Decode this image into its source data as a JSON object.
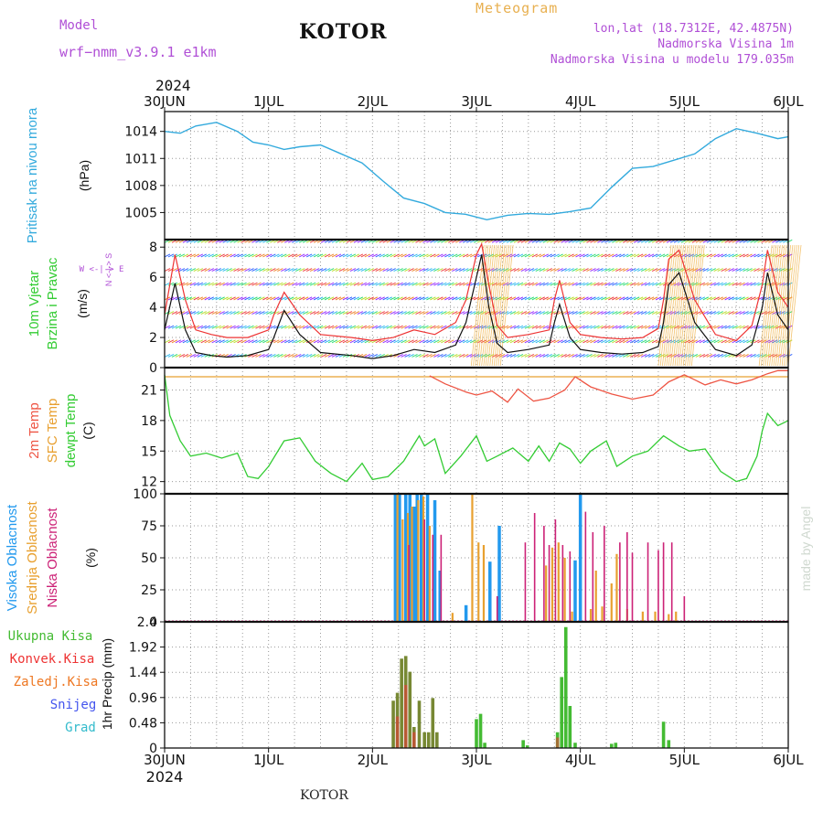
{
  "header": {
    "meteogram_label": "Meteogram",
    "title": "KOTOR",
    "model_label": "Model",
    "model_name": "wrf−nmm_v3.9.1  e1km",
    "coords": "lon,lat (18.7312E, 42.4875N)",
    "elevation": "Nadmorska Visina 1m",
    "model_elevation": "Nadmorska Visina u modelu 179.035m",
    "year_top": "2024",
    "footer_location": "KOTOR",
    "credit": "made by Angel"
  },
  "colors": {
    "pressure": "#33aadd",
    "wind_speed": "#111111",
    "wind_gust": "#ee3333",
    "temp_2m": "#ee5544",
    "temp_sfc": "#e8a030",
    "dewpoint": "#33cc33",
    "cloud_high": "#2299ee",
    "cloud_mid": "#e8a030",
    "cloud_low": "#cc2277",
    "precip_total": "#44bb33",
    "precip_conv": "#ee3333",
    "precip_frozen": "#ee7722",
    "snow": "#4455ee",
    "hail": "#33bbcc",
    "model_purple": "#b04fd6"
  },
  "chart_data": [
    {
      "type": "line",
      "panel": "pressure",
      "ylabel_colored": "Pritisak na nivou mora",
      "unit": "(hPa)",
      "x_tick_labels": [
        "30JUN",
        "1JUL",
        "2JUL",
        "3JUL",
        "4JUL",
        "5JUL",
        "6JUL"
      ],
      "x_tick_year": "2024",
      "y_ticks": [
        1005,
        1008,
        1011,
        1014
      ],
      "ylim": [
        1002,
        1016.2
      ],
      "x_days": [
        0,
        0.15,
        0.3,
        0.5,
        0.7,
        0.85,
        1.0,
        1.15,
        1.3,
        1.5,
        1.7,
        1.9,
        2.1,
        2.3,
        2.5,
        2.7,
        2.9,
        3.1,
        3.3,
        3.5,
        3.7,
        3.9,
        4.1,
        4.3,
        4.5,
        4.7,
        4.9,
        5.1,
        5.3,
        5.5,
        5.7,
        5.9,
        6.0
      ],
      "values": [
        1014.0,
        1013.8,
        1014.6,
        1015.0,
        1014.0,
        1012.8,
        1012.5,
        1012.0,
        1012.3,
        1012.5,
        1011.5,
        1010.5,
        1008.5,
        1006.6,
        1006.0,
        1005.0,
        1004.8,
        1004.2,
        1004.7,
        1004.9,
        1004.8,
        1005.1,
        1005.5,
        1007.8,
        1009.9,
        1010.1,
        1010.8,
        1011.5,
        1013.2,
        1014.3,
        1013.8,
        1013.2,
        1013.4
      ]
    },
    {
      "type": "line",
      "panel": "wind",
      "ylabel_colored_1": "10m Vjetar",
      "ylabel_colored_2": "Brzina i Pravac",
      "unit": "(m/s)",
      "compass": "W <-|-> E",
      "compass_vertical": "N <-|-> S",
      "y_ticks": [
        0,
        2,
        4,
        6,
        8
      ],
      "ylim": [
        0,
        8.5
      ],
      "x_days": [
        0,
        0.1,
        0.2,
        0.3,
        0.45,
        0.6,
        0.8,
        1.0,
        1.05,
        1.15,
        1.3,
        1.5,
        1.8,
        2.0,
        2.2,
        2.4,
        2.6,
        2.8,
        2.9,
        3.0,
        3.05,
        3.12,
        3.2,
        3.3,
        3.5,
        3.7,
        3.75,
        3.8,
        3.9,
        4.0,
        4.2,
        4.4,
        4.6,
        4.75,
        4.8,
        4.85,
        4.95,
        5.1,
        5.3,
        5.5,
        5.65,
        5.75,
        5.8,
        5.9,
        6.0
      ],
      "series": [
        {
          "name": "speed",
          "values": [
            2.5,
            5.6,
            2.5,
            1.0,
            0.8,
            0.7,
            0.8,
            1.2,
            2.0,
            3.8,
            2.2,
            1.0,
            0.8,
            0.6,
            0.8,
            1.2,
            1.0,
            1.5,
            3.0,
            6.0,
            7.5,
            4.0,
            1.6,
            1.0,
            1.2,
            1.5,
            3.0,
            4.2,
            2.0,
            1.2,
            1.0,
            0.9,
            1.0,
            1.4,
            3.0,
            5.5,
            6.3,
            3.0,
            1.2,
            0.8,
            1.5,
            4.0,
            6.3,
            3.5,
            2.5
          ]
        },
        {
          "name": "gust",
          "values": [
            3.5,
            7.5,
            4.5,
            2.5,
            2.2,
            2.0,
            2.0,
            2.5,
            3.5,
            5.0,
            3.5,
            2.2,
            2.0,
            1.8,
            2.0,
            2.5,
            2.2,
            3.0,
            4.5,
            7.5,
            8.2,
            5.5,
            2.8,
            2.0,
            2.2,
            2.5,
            4.5,
            5.8,
            3.0,
            2.2,
            2.0,
            1.9,
            2.0,
            2.6,
            4.5,
            7.2,
            7.8,
            4.5,
            2.2,
            1.8,
            2.8,
            5.5,
            7.8,
            5.0,
            4.0
          ]
        }
      ]
    },
    {
      "type": "line",
      "panel": "temperature",
      "ylabel_colored_1": "2m Temp",
      "ylabel_colored_2": "SFC Temp",
      "ylabel_colored_3": "dewpt Temp",
      "unit": "(C)",
      "y_ticks": [
        12,
        15,
        18,
        21
      ],
      "ylim": [
        10.8,
        23.2
      ],
      "sfc_temp_value": 22.3,
      "series": [
        {
          "name": "2m Temp",
          "x_days": [
            2.55,
            2.7,
            2.9,
            3.0,
            3.15,
            3.3,
            3.4,
            3.55,
            3.7,
            3.85,
            3.95,
            4.1,
            4.3,
            4.5,
            4.7,
            4.85,
            5.0,
            5.2,
            5.35,
            5.5,
            5.65,
            5.8,
            5.9,
            6.0
          ],
          "values": [
            22.4,
            21.6,
            20.8,
            20.5,
            20.9,
            19.8,
            21.1,
            19.9,
            20.2,
            21.0,
            22.3,
            21.3,
            20.6,
            20.1,
            20.5,
            21.8,
            22.5,
            21.5,
            22.0,
            21.6,
            22.0,
            22.6,
            22.9,
            22.9
          ]
        },
        {
          "name": "dewpt Temp",
          "x_days": [
            0,
            0.05,
            0.15,
            0.25,
            0.4,
            0.55,
            0.7,
            0.8,
            0.9,
            1.0,
            1.15,
            1.3,
            1.45,
            1.6,
            1.75,
            1.9,
            2.0,
            2.15,
            2.3,
            2.45,
            2.5,
            2.6,
            2.7,
            2.85,
            3.0,
            3.1,
            3.2,
            3.35,
            3.5,
            3.6,
            3.7,
            3.8,
            3.9,
            4.0,
            4.1,
            4.25,
            4.35,
            4.5,
            4.65,
            4.8,
            4.95,
            5.05,
            5.2,
            5.35,
            5.5,
            5.6,
            5.7,
            5.75,
            5.8,
            5.9,
            6.0
          ],
          "values": [
            22.5,
            18.5,
            16.0,
            14.5,
            14.8,
            14.3,
            14.8,
            12.5,
            12.3,
            13.5,
            16.0,
            16.3,
            14.0,
            12.8,
            12.0,
            13.8,
            12.2,
            12.5,
            14.0,
            16.5,
            15.5,
            16.2,
            12.8,
            14.5,
            16.5,
            14.0,
            14.5,
            15.3,
            14.0,
            15.5,
            14.0,
            15.8,
            15.2,
            13.8,
            15.0,
            16.0,
            13.5,
            14.5,
            15.0,
            16.5,
            15.5,
            15.0,
            15.2,
            13.0,
            12.0,
            12.3,
            14.5,
            17.0,
            18.7,
            17.5,
            18.0
          ]
        }
      ]
    },
    {
      "type": "bar",
      "panel": "clouds",
      "ylabel_colored_1": "Visoka Oblacnost",
      "ylabel_colored_2": "Srednja Oblacnost",
      "ylabel_colored_3": "Niska Oblacnost",
      "unit": "(%)",
      "y_ticks": [
        0,
        25,
        50,
        75,
        100
      ],
      "ylim": [
        0,
        100
      ],
      "series": [
        {
          "name": "high",
          "x_days": [
            2.22,
            2.26,
            2.32,
            2.36,
            2.4,
            2.43,
            2.47,
            2.53,
            2.6,
            2.65,
            2.9,
            3.13,
            3.22
          ],
          "values": [
            100,
            100,
            100,
            100,
            90,
            100,
            100,
            100,
            95,
            40,
            13,
            47,
            75
          ]
        },
        {
          "name": "mid",
          "x_days": [
            2.24,
            2.29,
            2.34,
            2.38,
            2.44,
            2.49,
            2.55,
            2.77,
            2.96,
            3.02,
            3.07,
            3.67,
            3.73,
            3.79,
            3.85,
            3.92,
            4.1,
            4.15,
            4.21,
            4.3,
            4.35,
            4.45,
            4.6,
            4.72,
            4.85,
            4.92
          ],
          "values": [
            100,
            80,
            85,
            90,
            95,
            98,
            75,
            7,
            100,
            62,
            60,
            44,
            58,
            62,
            50,
            8,
            10,
            40,
            12,
            30,
            53,
            10,
            8,
            8,
            6,
            8
          ]
        },
        {
          "name": "low",
          "x_days": [
            2.35,
            2.5,
            2.58,
            2.66,
            3.2,
            3.47,
            3.56,
            3.65,
            3.7,
            3.76,
            3.83,
            3.9,
            4.05,
            4.12,
            4.23,
            4.38,
            4.45,
            4.5,
            4.65,
            4.75,
            4.8,
            4.88,
            5.0
          ],
          "values": [
            60,
            80,
            68,
            68,
            20,
            62,
            85,
            75,
            60,
            80,
            60,
            55,
            86,
            70,
            75,
            62,
            70,
            54,
            62,
            56,
            62,
            62,
            20
          ]
        },
        {
          "name": "high_2",
          "x_days": [
            3.95,
            4.0
          ],
          "values": [
            48,
            100
          ]
        }
      ]
    },
    {
      "type": "bar",
      "panel": "precip",
      "ylabel": "1hr Precip",
      "unit": "(mm)",
      "legend": [
        "Ukupna Kisa",
        "Konvek.Kisa",
        "Zaledj.Kisa",
        "Snijeg",
        "Grad"
      ],
      "y_ticks": [
        0,
        0.48,
        0.96,
        1.44,
        1.92,
        2.4
      ],
      "ylim": [
        0,
        2.4
      ],
      "series": [
        {
          "name": "Ukupna Kisa",
          "x_days": [
            2.2,
            2.24,
            2.28,
            2.32,
            2.36,
            2.4,
            2.45,
            2.5,
            2.54,
            2.58,
            2.62,
            3.0,
            3.04,
            3.08,
            3.45,
            3.49,
            3.78,
            3.82,
            3.86,
            3.9,
            3.95,
            4.3,
            4.34,
            4.8,
            4.85
          ],
          "values": [
            0.9,
            1.05,
            1.7,
            1.75,
            1.45,
            0.4,
            0.9,
            0.3,
            0.3,
            0.95,
            0.3,
            0.55,
            0.65,
            0.1,
            0.15,
            0.05,
            0.3,
            1.35,
            2.3,
            0.8,
            0.1,
            0.08,
            0.1,
            0.5,
            0.15
          ]
        },
        {
          "name": "Konvek.Kisa",
          "x_days": [
            2.24,
            2.32,
            2.4,
            3.78
          ],
          "values": [
            0.6,
            1.2,
            0.3,
            0.2
          ]
        }
      ]
    }
  ]
}
